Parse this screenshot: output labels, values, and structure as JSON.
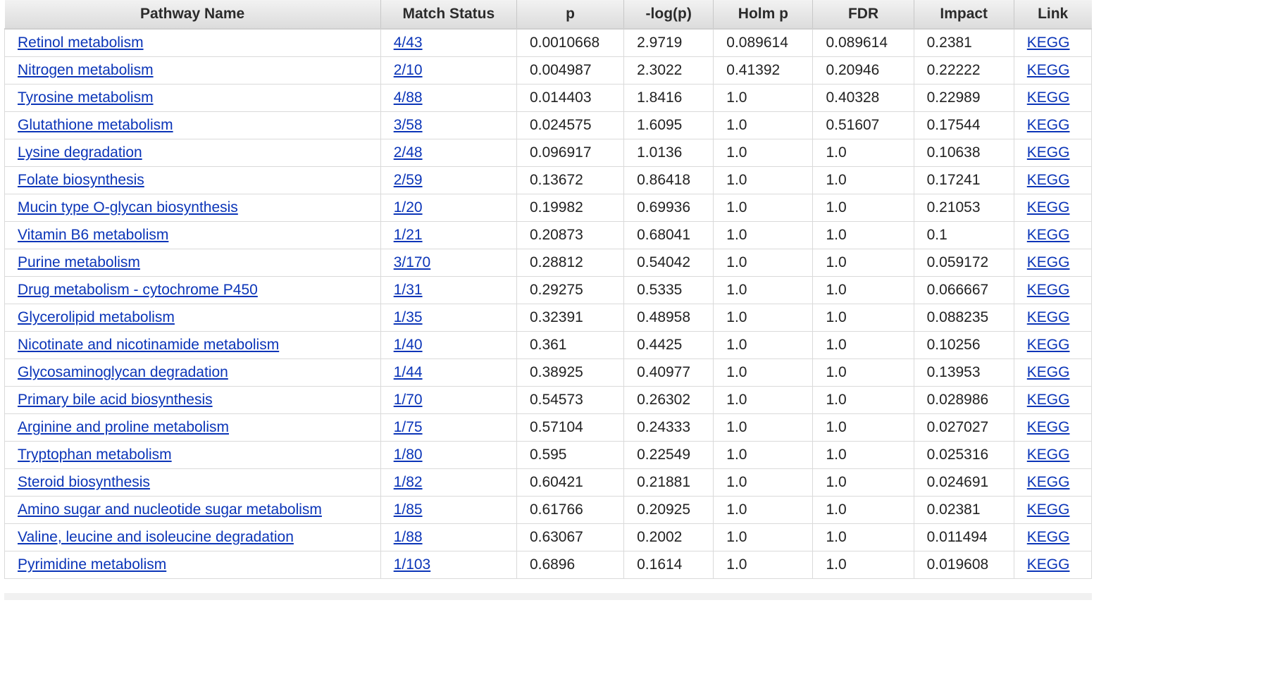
{
  "table": {
    "headers": [
      "Pathway Name",
      "Match Status",
      "p",
      "-log(p)",
      "Holm p",
      "FDR",
      "Impact",
      "Link"
    ],
    "rows": [
      {
        "name": "Retinol metabolism",
        "match": "4/43",
        "p": "0.0010668",
        "logp": "2.9719",
        "holm": "0.089614",
        "fdr": "0.089614",
        "impact": "0.2381",
        "link": "KEGG"
      },
      {
        "name": "Nitrogen metabolism",
        "match": "2/10",
        "p": "0.004987",
        "logp": "2.3022",
        "holm": "0.41392",
        "fdr": "0.20946",
        "impact": "0.22222",
        "link": "KEGG"
      },
      {
        "name": "Tyrosine metabolism",
        "match": "4/88",
        "p": "0.014403",
        "logp": "1.8416",
        "holm": "1.0",
        "fdr": "0.40328",
        "impact": "0.22989",
        "link": "KEGG"
      },
      {
        "name": "Glutathione metabolism",
        "match": "3/58",
        "p": "0.024575",
        "logp": "1.6095",
        "holm": "1.0",
        "fdr": "0.51607",
        "impact": "0.17544",
        "link": "KEGG"
      },
      {
        "name": "Lysine degradation",
        "match": "2/48",
        "p": "0.096917",
        "logp": "1.0136",
        "holm": "1.0",
        "fdr": "1.0",
        "impact": "0.10638",
        "link": "KEGG"
      },
      {
        "name": "Folate biosynthesis",
        "match": "2/59",
        "p": "0.13672",
        "logp": "0.86418",
        "holm": "1.0",
        "fdr": "1.0",
        "impact": "0.17241",
        "link": "KEGG"
      },
      {
        "name": "Mucin type O-glycan biosynthesis",
        "match": "1/20",
        "p": "0.19982",
        "logp": "0.69936",
        "holm": "1.0",
        "fdr": "1.0",
        "impact": "0.21053",
        "link": "KEGG"
      },
      {
        "name": "Vitamin B6 metabolism",
        "match": "1/21",
        "p": "0.20873",
        "logp": "0.68041",
        "holm": "1.0",
        "fdr": "1.0",
        "impact": "0.1",
        "link": "KEGG"
      },
      {
        "name": "Purine metabolism",
        "match": "3/170",
        "p": "0.28812",
        "logp": "0.54042",
        "holm": "1.0",
        "fdr": "1.0",
        "impact": "0.059172",
        "link": "KEGG"
      },
      {
        "name": "Drug metabolism - cytochrome P450",
        "match": "1/31",
        "p": "0.29275",
        "logp": "0.5335",
        "holm": "1.0",
        "fdr": "1.0",
        "impact": "0.066667",
        "link": "KEGG"
      },
      {
        "name": "Glycerolipid metabolism",
        "match": "1/35",
        "p": "0.32391",
        "logp": "0.48958",
        "holm": "1.0",
        "fdr": "1.0",
        "impact": "0.088235",
        "link": "KEGG"
      },
      {
        "name": "Nicotinate and nicotinamide metabolism",
        "match": "1/40",
        "p": "0.361",
        "logp": "0.4425",
        "holm": "1.0",
        "fdr": "1.0",
        "impact": "0.10256",
        "link": "KEGG"
      },
      {
        "name": "Glycosaminoglycan degradation",
        "match": "1/44",
        "p": "0.38925",
        "logp": "0.40977",
        "holm": "1.0",
        "fdr": "1.0",
        "impact": "0.13953",
        "link": "KEGG"
      },
      {
        "name": "Primary bile acid biosynthesis",
        "match": "1/70",
        "p": "0.54573",
        "logp": "0.26302",
        "holm": "1.0",
        "fdr": "1.0",
        "impact": "0.028986",
        "link": "KEGG"
      },
      {
        "name": "Arginine and proline metabolism",
        "match": "1/75",
        "p": "0.57104",
        "logp": "0.24333",
        "holm": "1.0",
        "fdr": "1.0",
        "impact": "0.027027",
        "link": "KEGG"
      },
      {
        "name": "Tryptophan metabolism",
        "match": "1/80",
        "p": "0.595",
        "logp": "0.22549",
        "holm": "1.0",
        "fdr": "1.0",
        "impact": "0.025316",
        "link": "KEGG"
      },
      {
        "name": "Steroid biosynthesis",
        "match": "1/82",
        "p": "0.60421",
        "logp": "0.21881",
        "holm": "1.0",
        "fdr": "1.0",
        "impact": "0.024691",
        "link": "KEGG"
      },
      {
        "name": "Amino sugar and nucleotide sugar metabolism",
        "match": "1/85",
        "p": "0.61766",
        "logp": "0.20925",
        "holm": "1.0",
        "fdr": "1.0",
        "impact": "0.02381",
        "link": "KEGG"
      },
      {
        "name": "Valine, leucine and isoleucine degradation",
        "match": "1/88",
        "p": "0.63067",
        "logp": "0.2002",
        "holm": "1.0",
        "fdr": "1.0",
        "impact": "0.011494",
        "link": "KEGG"
      },
      {
        "name": "Pyrimidine metabolism",
        "match": "1/103",
        "p": "0.6896",
        "logp": "0.1614",
        "holm": "1.0",
        "fdr": "1.0",
        "impact": "0.019608",
        "link": "KEGG"
      }
    ]
  },
  "colors": {
    "link": "#0b35b8",
    "header_bg": "#e7e7e7",
    "grid": "#dadada"
  }
}
